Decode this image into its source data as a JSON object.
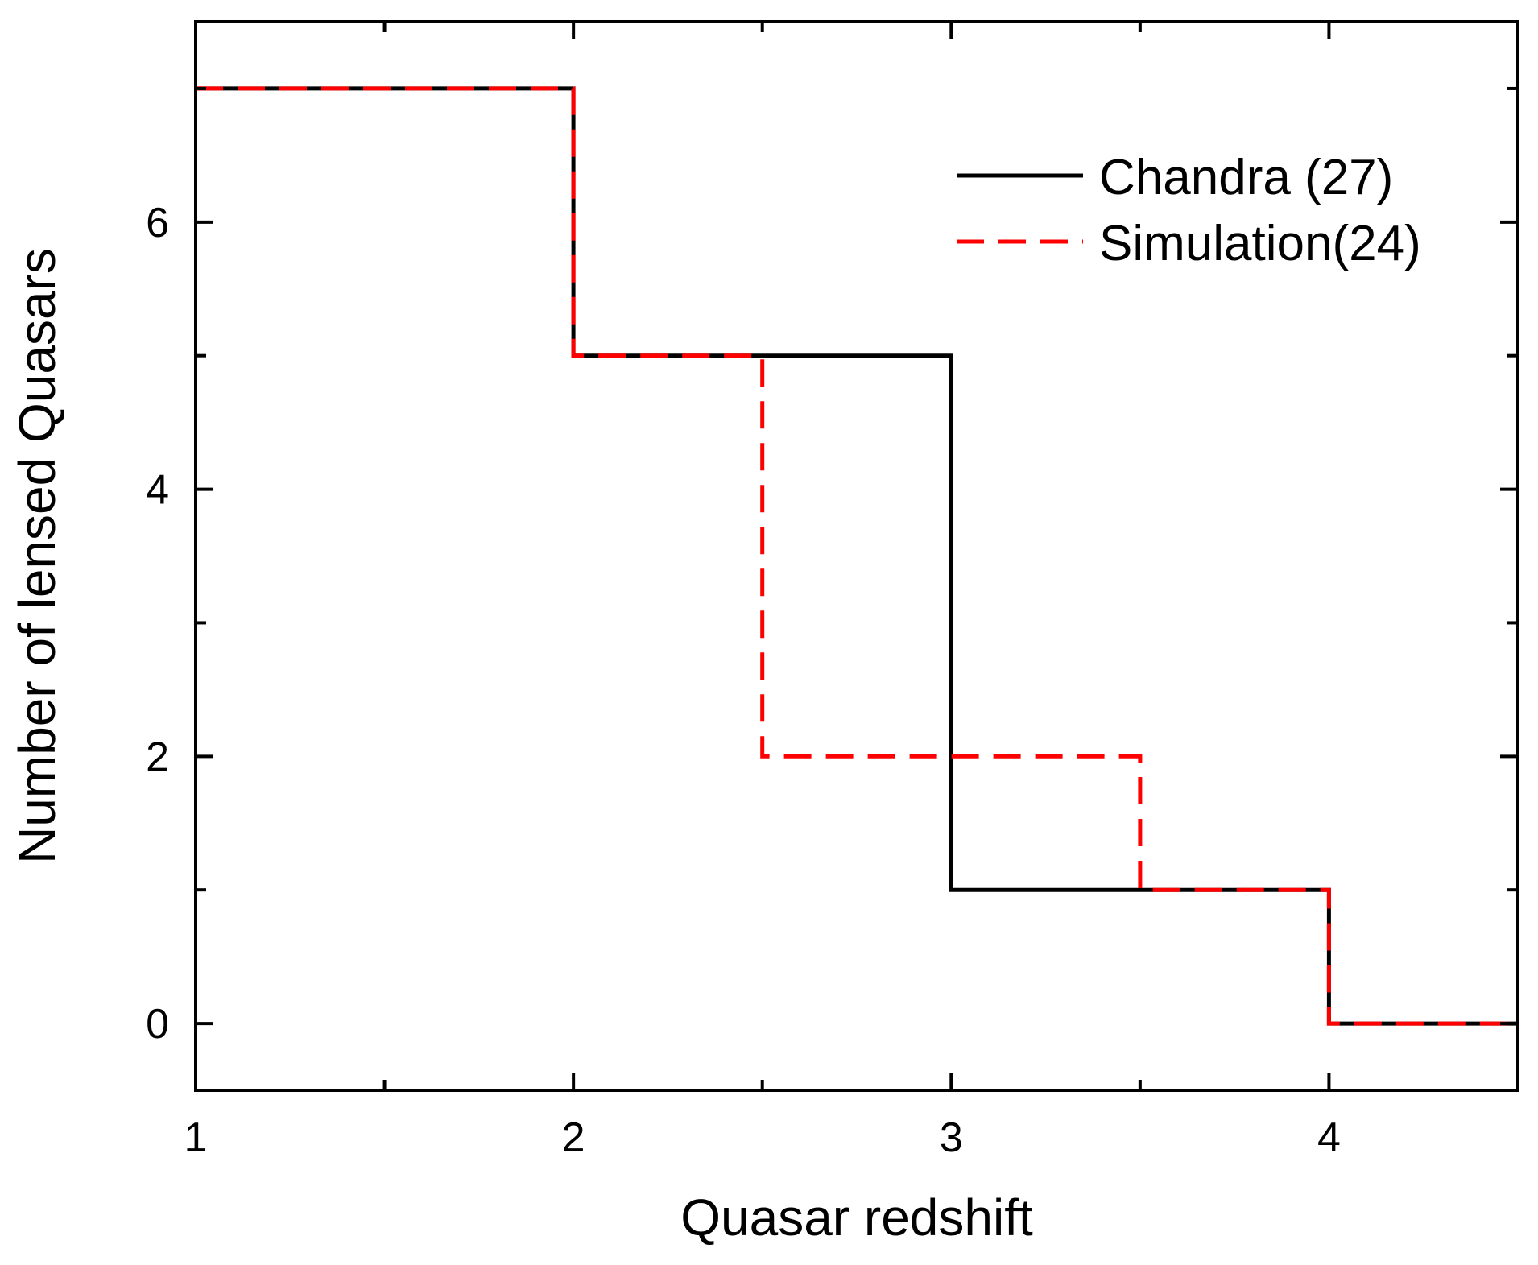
{
  "chart_data": {
    "type": "line",
    "step": true,
    "xlabel": "Quasar redshift",
    "ylabel": "Number of lensed Quasars",
    "xlim": [
      1,
      4.5
    ],
    "ylim": [
      -0.5,
      7.5
    ],
    "xticks": [
      1,
      2,
      3,
      4
    ],
    "xtick_labels": [
      "1",
      "2",
      "3",
      "4"
    ],
    "yticks": [
      0,
      2,
      4,
      6
    ],
    "ytick_labels": [
      "0",
      "2",
      "4",
      "6"
    ],
    "legend_position": "top-right",
    "series": [
      {
        "name": "Chandra (27)",
        "color": "#000000",
        "style": "solid",
        "x": [
          1.0,
          2.0,
          2.0,
          3.0,
          3.0,
          4.0,
          4.0,
          4.5
        ],
        "y": [
          7,
          7,
          5,
          5,
          1,
          1,
          0,
          0
        ]
      },
      {
        "name": "Simulation(24)",
        "color": "#ff0000",
        "style": "dashed",
        "x": [
          1.0,
          2.0,
          2.0,
          2.5,
          2.5,
          3.5,
          3.5,
          4.0,
          4.0,
          4.5
        ],
        "y": [
          7,
          7,
          5,
          5,
          2,
          2,
          1,
          1,
          0,
          0
        ]
      }
    ]
  }
}
